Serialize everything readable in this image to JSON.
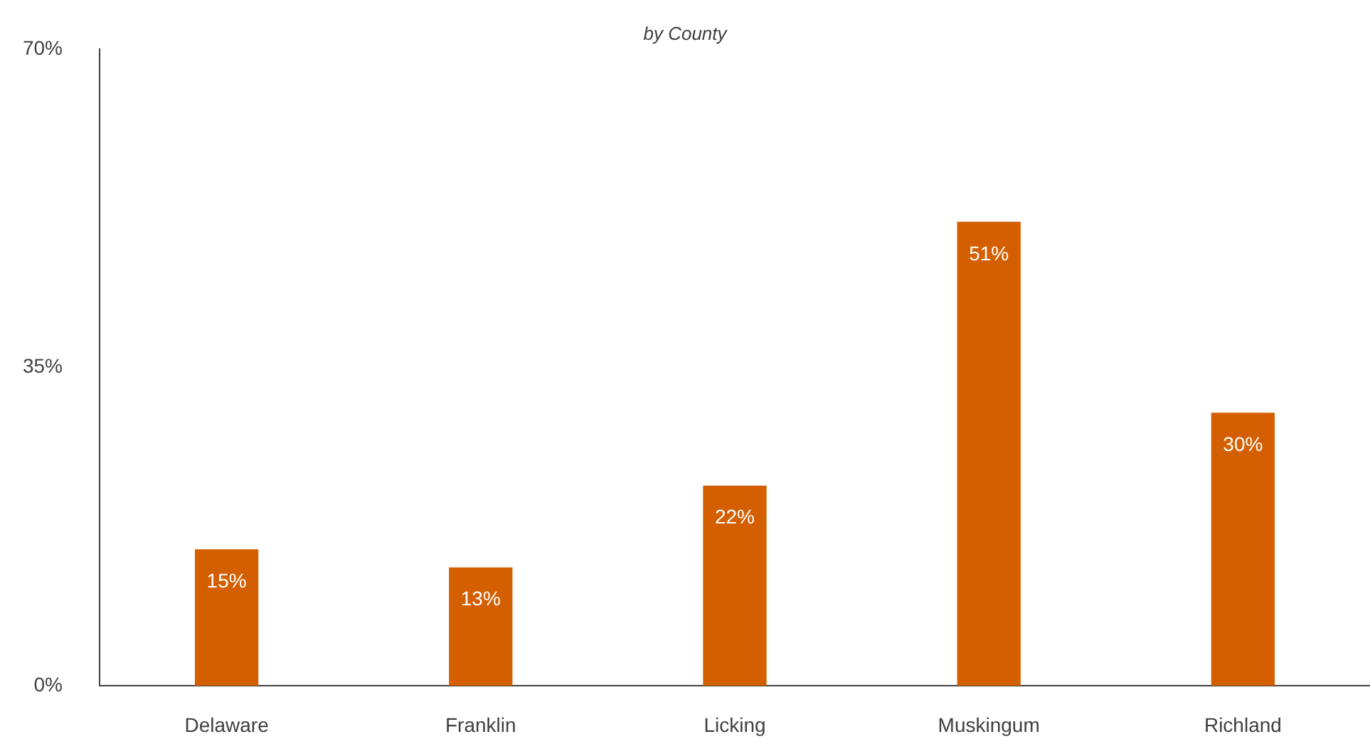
{
  "chart_data": {
    "type": "bar",
    "subtitle": "by County",
    "categories": [
      "Delaware",
      "Franklin",
      "Licking",
      "Muskingum",
      "Richland"
    ],
    "values": [
      15,
      13,
      22,
      51,
      30
    ],
    "color": "#d45f00",
    "value_labels": [
      "15%",
      "13%",
      "22%",
      "51%",
      "30%"
    ],
    "ylim": [
      0,
      70
    ],
    "yticks": [
      {
        "value": 0,
        "label": "0%"
      },
      {
        "value": 35,
        "label": "35%"
      },
      {
        "value": 70,
        "label": "70%"
      }
    ]
  }
}
